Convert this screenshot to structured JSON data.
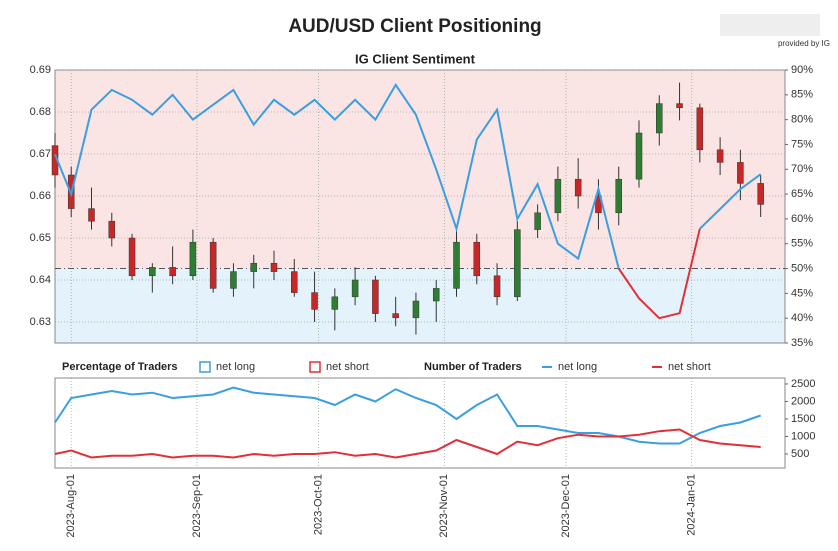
{
  "branding": "provided by IG",
  "chart_data": [
    {
      "type": "candlestick",
      "title": "AUD/USD Client Positioning",
      "subtitle": "IG Client Sentiment",
      "legend_title": "Percentage of Traders",
      "x": [
        "2023-07-28",
        "2023-08-01",
        "2023-08-06",
        "2023-08-11",
        "2023-08-16",
        "2023-08-21",
        "2023-08-26",
        "2023-08-31",
        "2023-09-05",
        "2023-09-10",
        "2023-09-15",
        "2023-09-20",
        "2023-09-25",
        "2023-09-30",
        "2023-10-05",
        "2023-10-10",
        "2023-10-15",
        "2023-10-20",
        "2023-10-25",
        "2023-10-30",
        "2023-11-04",
        "2023-11-09",
        "2023-11-14",
        "2023-11-19",
        "2023-11-24",
        "2023-11-29",
        "2023-12-04",
        "2023-12-09",
        "2023-12-14",
        "2023-12-19",
        "2023-12-24",
        "2023-12-29",
        "2024-01-03",
        "2024-01-08",
        "2024-01-13",
        "2024-01-18"
      ],
      "open": [
        0.672,
        0.665,
        0.657,
        0.654,
        0.65,
        0.641,
        0.643,
        0.641,
        0.649,
        0.638,
        0.642,
        0.644,
        0.642,
        0.637,
        0.633,
        0.636,
        0.64,
        0.632,
        0.631,
        0.635,
        0.638,
        0.649,
        0.641,
        0.636,
        0.652,
        0.656,
        0.664,
        0.66,
        0.656,
        0.664,
        0.675,
        0.682,
        0.681,
        0.671,
        0.668,
        0.663
      ],
      "high": [
        0.675,
        0.667,
        0.662,
        0.656,
        0.651,
        0.644,
        0.648,
        0.652,
        0.65,
        0.644,
        0.646,
        0.647,
        0.645,
        0.642,
        0.638,
        0.643,
        0.641,
        0.636,
        0.637,
        0.64,
        0.652,
        0.651,
        0.644,
        0.654,
        0.658,
        0.667,
        0.669,
        0.664,
        0.667,
        0.678,
        0.684,
        0.687,
        0.682,
        0.674,
        0.671,
        0.665
      ],
      "low": [
        0.662,
        0.655,
        0.652,
        0.648,
        0.64,
        0.637,
        0.639,
        0.64,
        0.637,
        0.636,
        0.638,
        0.64,
        0.636,
        0.63,
        0.628,
        0.634,
        0.63,
        0.629,
        0.627,
        0.63,
        0.636,
        0.639,
        0.634,
        0.635,
        0.65,
        0.654,
        0.657,
        0.652,
        0.653,
        0.662,
        0.672,
        0.678,
        0.668,
        0.665,
        0.659,
        0.655
      ],
      "close": [
        0.665,
        0.657,
        0.654,
        0.65,
        0.641,
        0.643,
        0.641,
        0.649,
        0.638,
        0.642,
        0.644,
        0.642,
        0.637,
        0.633,
        0.636,
        0.64,
        0.632,
        0.631,
        0.635,
        0.638,
        0.649,
        0.641,
        0.636,
        0.652,
        0.656,
        0.664,
        0.66,
        0.656,
        0.664,
        0.675,
        0.682,
        0.681,
        0.671,
        0.668,
        0.663,
        0.658
      ],
      "up_color": "#2e7d32",
      "down_color": "#c62828",
      "xlim": [
        "2023-07-28",
        "2024-01-24"
      ],
      "ylim": [
        0.625,
        0.69
      ],
      "yticks": [
        0.63,
        0.64,
        0.65,
        0.66,
        0.67,
        0.68,
        0.69
      ],
      "y2lim": [
        35,
        90
      ],
      "y2ticks": [
        {
          "value": 35,
          "label": "35%"
        },
        {
          "value": 40,
          "label": "40%"
        },
        {
          "value": 45,
          "label": "45%"
        },
        {
          "value": 50,
          "label": "50%"
        },
        {
          "value": 55,
          "label": "55%"
        },
        {
          "value": 60,
          "label": "60%"
        },
        {
          "value": 65,
          "label": "65%"
        },
        {
          "value": 70,
          "label": "70%"
        },
        {
          "value": 75,
          "label": "75%"
        },
        {
          "value": 80,
          "label": "80%"
        },
        {
          "value": 85,
          "label": "85%"
        },
        {
          "value": 90,
          "label": "90%"
        }
      ],
      "y2_ref": 50,
      "series": [
        {
          "name": "net long",
          "color": "#3a9fe0",
          "axis": "y2",
          "values": [
            73,
            65,
            82,
            86,
            84,
            81,
            85,
            80,
            83,
            86,
            79,
            84,
            81,
            84,
            80,
            84,
            80,
            87,
            81,
            70,
            58,
            76,
            82,
            60,
            67,
            55,
            52,
            66,
            50,
            null,
            null,
            null,
            58,
            62,
            66,
            69
          ]
        },
        {
          "name": "net short",
          "color": "#e0303a",
          "axis": "y2",
          "values": [
            null,
            null,
            null,
            null,
            null,
            null,
            null,
            null,
            null,
            null,
            null,
            null,
            null,
            null,
            null,
            null,
            null,
            null,
            null,
            null,
            null,
            null,
            null,
            null,
            null,
            null,
            null,
            null,
            50,
            44,
            40,
            41,
            58,
            null,
            null,
            null
          ]
        }
      ]
    },
    {
      "type": "line",
      "legend_title": "Number of Traders",
      "x": [
        "2023-07-28",
        "2023-08-01",
        "2023-08-06",
        "2023-08-11",
        "2023-08-16",
        "2023-08-21",
        "2023-08-26",
        "2023-08-31",
        "2023-09-05",
        "2023-09-10",
        "2023-09-15",
        "2023-09-20",
        "2023-09-25",
        "2023-09-30",
        "2023-10-05",
        "2023-10-10",
        "2023-10-15",
        "2023-10-20",
        "2023-10-25",
        "2023-10-30",
        "2023-11-04",
        "2023-11-09",
        "2023-11-14",
        "2023-11-19",
        "2023-11-24",
        "2023-11-29",
        "2023-12-04",
        "2023-12-09",
        "2023-12-14",
        "2023-12-19",
        "2023-12-24",
        "2023-12-29",
        "2024-01-03",
        "2024-01-08",
        "2024-01-13",
        "2024-01-18"
      ],
      "xlim": [
        "2023-07-28",
        "2024-01-24"
      ],
      "xticks": [
        {
          "value": "2023-08-01",
          "label": "2023-Aug-01"
        },
        {
          "value": "2023-09-01",
          "label": "2023-Sep-01"
        },
        {
          "value": "2023-10-01",
          "label": "2023-Oct-01"
        },
        {
          "value": "2023-11-01",
          "label": "2023-Nov-01"
        },
        {
          "value": "2023-12-01",
          "label": "2023-Dec-01"
        },
        {
          "value": "2024-01-01",
          "label": "2024-Jan-01"
        }
      ],
      "ylim": [
        100,
        2670
      ],
      "yticks": [
        500,
        1000,
        1500,
        2000,
        2500
      ],
      "series": [
        {
          "name": "net long",
          "color": "#3a9fe0",
          "values": [
            1400,
            2100,
            2200,
            2300,
            2200,
            2250,
            2100,
            2150,
            2200,
            2400,
            2250,
            2200,
            2150,
            2100,
            1900,
            2200,
            2000,
            2350,
            2100,
            1900,
            1500,
            1900,
            2200,
            1300,
            1300,
            1200,
            1100,
            1100,
            1000,
            850,
            800,
            800,
            1100,
            1300,
            1400,
            1600
          ]
        },
        {
          "name": "net short",
          "color": "#e0303a",
          "values": [
            500,
            600,
            400,
            450,
            450,
            500,
            400,
            450,
            450,
            400,
            500,
            450,
            500,
            500,
            550,
            450,
            500,
            400,
            500,
            600,
            900,
            700,
            500,
            850,
            750,
            950,
            1050,
            1000,
            1000,
            1050,
            1150,
            1200,
            900,
            800,
            750,
            700
          ]
        }
      ]
    }
  ]
}
